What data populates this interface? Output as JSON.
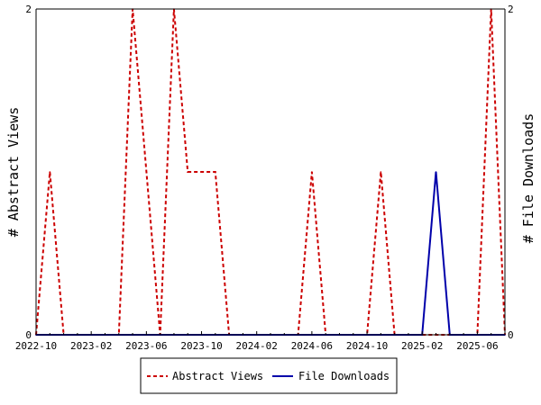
{
  "chart_data": {
    "type": "line",
    "x_tick_labels": [
      "2022-10",
      "2023-02",
      "2023-06",
      "2023-10",
      "2024-02",
      "2024-06",
      "2024-10",
      "2025-02",
      "2025-06"
    ],
    "ylabel_left": "# Abstract Views",
    "ylabel_right": "# File Downloads",
    "ylim": [
      0,
      2
    ],
    "y_tick_labels": [
      "0",
      "2"
    ],
    "x_months": [
      "2022-10",
      "2022-11",
      "2022-12",
      "2023-01",
      "2023-02",
      "2023-03",
      "2023-04",
      "2023-05",
      "2023-06",
      "2023-07",
      "2023-08",
      "2023-09",
      "2023-10",
      "2023-11",
      "2023-12",
      "2024-01",
      "2024-02",
      "2024-03",
      "2024-04",
      "2024-05",
      "2024-06",
      "2024-07",
      "2024-08",
      "2024-09",
      "2024-10",
      "2024-11",
      "2024-12",
      "2025-01",
      "2025-02",
      "2025-03",
      "2025-04",
      "2025-05",
      "2025-06",
      "2025-07",
      "2025-08"
    ],
    "series": [
      {
        "name": "Abstract Views",
        "color": "#cc0000",
        "dash": "dashed",
        "values": [
          0,
          1,
          0,
          0,
          0,
          0,
          0,
          2,
          1,
          0,
          2,
          1,
          1,
          1,
          0,
          0,
          0,
          0,
          0,
          0,
          1,
          0,
          0,
          0,
          0,
          1,
          0,
          0,
          0,
          0,
          0,
          0,
          0,
          2,
          0
        ]
      },
      {
        "name": "File Downloads",
        "color": "#0000aa",
        "dash": "solid",
        "values": [
          0,
          0,
          0,
          0,
          0,
          0,
          0,
          0,
          0,
          0,
          0,
          0,
          0,
          0,
          0,
          0,
          0,
          0,
          0,
          0,
          0,
          0,
          0,
          0,
          0,
          0,
          0,
          0,
          0,
          1,
          0,
          0,
          0,
          0,
          0
        ]
      }
    ],
    "legend_position": "bottom"
  }
}
